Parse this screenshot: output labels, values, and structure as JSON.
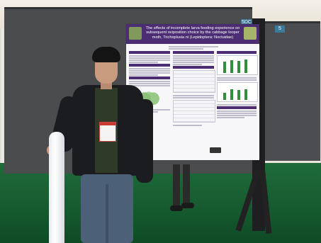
{
  "poster": {
    "title": "The effects of incomplete larva feeding experience on subsequent oviposition choice by the cabbage looper moth, Trichoplusia ni (Lepidoptera: Noctuidae)"
  },
  "tags": {
    "left": "5DC",
    "right": "5"
  },
  "colors": {
    "poster_header": "#4c2d73",
    "board": "#4a4c4e",
    "carpet": "#1f6b3a",
    "chart_bars": "#2f8f3b"
  }
}
